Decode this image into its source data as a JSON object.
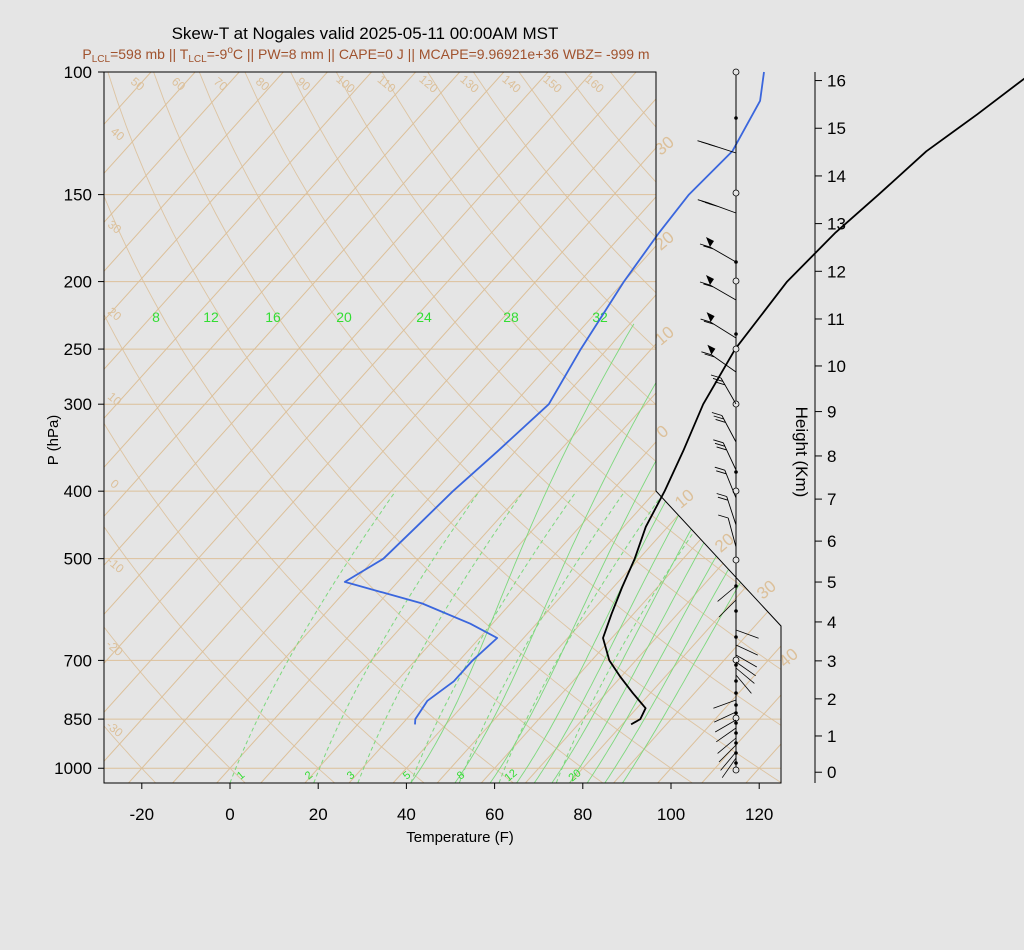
{
  "chart_data": {
    "type": "line",
    "title": "Skew-T at Nogales valid 2025-05-11 00:00AM MST",
    "subtitle": {
      "plcl_label": "P",
      "plcl_sub": "LCL",
      "plcl_value": "=598 mb || T",
      "tlcl_sub": "LCL",
      "tlcl_value": "=-9",
      "deg_sup": "o",
      "rest": "C || PW=8 mm || CAPE=0 J || MCAPE=9.96921e+36 WBZ= -999 m"
    },
    "xlabel": "Temperature (F)",
    "ylabel": "P (hPa)",
    "y2label": "Height (Km)",
    "xlim": [
      -28,
      125
    ],
    "ylim": [
      1050,
      100
    ],
    "y_scale": "log",
    "colors": {
      "background": "#e5e5e5",
      "plot_background": "#e5e5e5",
      "isotherm": "#dcc09a",
      "mixing_ratio": "#7dd87d",
      "mixing_label": "#33dd33",
      "temperature": "#000000",
      "dewpoint": "#3a66dd",
      "subtitle": "#a0522d"
    },
    "x_ticks": [
      "-20",
      "0",
      "20",
      "40",
      "60",
      "80",
      "100",
      "120"
    ],
    "p_ticks": [
      "100",
      "150",
      "200",
      "250",
      "300",
      "400",
      "500",
      "700",
      "850",
      "1000"
    ],
    "height_ticks": [
      "0",
      "1",
      "2",
      "3",
      "4",
      "5",
      "6",
      "7",
      "8",
      "9",
      "10",
      "11",
      "12",
      "13",
      "14",
      "15",
      "16"
    ],
    "isotherm_labels": [
      "-30",
      "-20",
      "-10",
      "0",
      "10",
      "20",
      "30",
      "40",
      "50",
      "60",
      "70",
      "80",
      "90",
      "100",
      "110",
      "120",
      "130",
      "140",
      "150",
      "160"
    ],
    "isotherm_right_labels": [
      "30",
      "20",
      "10",
      "0",
      "10",
      "20",
      "30",
      "40"
    ],
    "mixing_ratio_top_labels": [
      "8",
      "12",
      "16",
      "20",
      "24",
      "28",
      "32"
    ],
    "mixing_ratio_bottom_labels": [
      "1",
      "2",
      "3",
      "5",
      "8",
      "12",
      "20"
    ],
    "series": [
      {
        "key": "temperature",
        "points": [
          [
            82,
            865
          ],
          [
            83,
            850
          ],
          [
            82,
            820
          ],
          [
            76,
            780
          ],
          [
            70,
            740
          ],
          [
            64,
            700
          ],
          [
            58,
            650
          ],
          [
            55,
            600
          ],
          [
            52,
            550
          ],
          [
            49,
            500
          ],
          [
            45,
            450
          ],
          [
            42,
            400
          ],
          [
            38,
            350
          ],
          [
            33,
            300
          ],
          [
            29,
            250
          ],
          [
            27,
            200
          ],
          [
            28,
            170
          ],
          [
            30,
            150
          ],
          [
            32,
            130
          ],
          [
            36,
            115
          ],
          [
            40,
            100
          ]
        ]
      },
      {
        "key": "dewpoint",
        "points": [
          [
            33,
            865
          ],
          [
            32,
            850
          ],
          [
            31,
            800
          ],
          [
            33,
            750
          ],
          [
            33,
            700
          ],
          [
            34,
            650
          ],
          [
            25,
            620
          ],
          [
            10,
            580
          ],
          [
            -12,
            540
          ],
          [
            -8,
            500
          ],
          [
            -7,
            450
          ],
          [
            -6,
            400
          ],
          [
            -4,
            350
          ],
          [
            -2,
            300
          ],
          [
            -6,
            250
          ],
          [
            -10,
            200
          ],
          [
            -12,
            170
          ],
          [
            -13,
            150
          ],
          [
            -12,
            130
          ],
          [
            -16,
            110
          ],
          [
            -21,
            100
          ]
        ]
      }
    ]
  }
}
